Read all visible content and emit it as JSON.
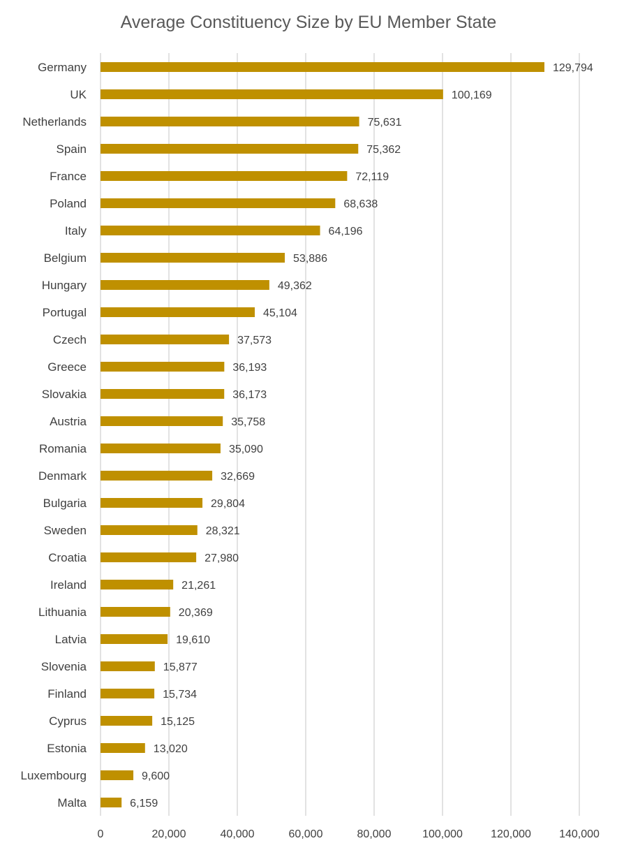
{
  "chart_data": {
    "type": "bar",
    "orientation": "horizontal",
    "title": "Average Constituency Size by EU Member State",
    "xlabel": "",
    "ylabel": "",
    "xlim": [
      0,
      140000
    ],
    "grid": "vertical",
    "legend": "none",
    "bar_color": "#BF9000",
    "categories": [
      "Germany",
      "UK",
      "Netherlands",
      "Spain",
      "France",
      "Poland",
      "Italy",
      "Belgium",
      "Hungary",
      "Portugal",
      "Czech",
      "Greece",
      "Slovakia",
      "Austria",
      "Romania",
      "Denmark",
      "Bulgaria",
      "Sweden",
      "Croatia",
      "Ireland",
      "Lithuania",
      "Latvia",
      "Slovenia",
      "Finland",
      "Cyprus",
      "Estonia",
      "Luxembourg",
      "Malta"
    ],
    "values": [
      129794,
      100169,
      75631,
      75362,
      72119,
      68638,
      64196,
      53886,
      49362,
      45104,
      37573,
      36193,
      36173,
      35758,
      35090,
      32669,
      29804,
      28321,
      27980,
      21261,
      20369,
      19610,
      15877,
      15734,
      15125,
      13020,
      9600,
      6159
    ],
    "value_labels": [
      "129,794",
      "100,169",
      "75,631",
      "75,362",
      "72,119",
      "68,638",
      "64,196",
      "53,886",
      "49,362",
      "45,104",
      "37,573",
      "36,193",
      "36,173",
      "35,758",
      "35,090",
      "32,669",
      "29,804",
      "28,321",
      "27,980",
      "21,261",
      "20,369",
      "19,610",
      "15,877",
      "15,734",
      "15,125",
      "13,020",
      "9,600",
      "6,159"
    ],
    "tick_values": [
      0,
      20000,
      40000,
      60000,
      80000,
      100000,
      120000,
      140000
    ],
    "tick_labels": [
      "0",
      "20,000",
      "40,000",
      "60,000",
      "80,000",
      "100,000",
      "120,000",
      "140,000"
    ]
  }
}
